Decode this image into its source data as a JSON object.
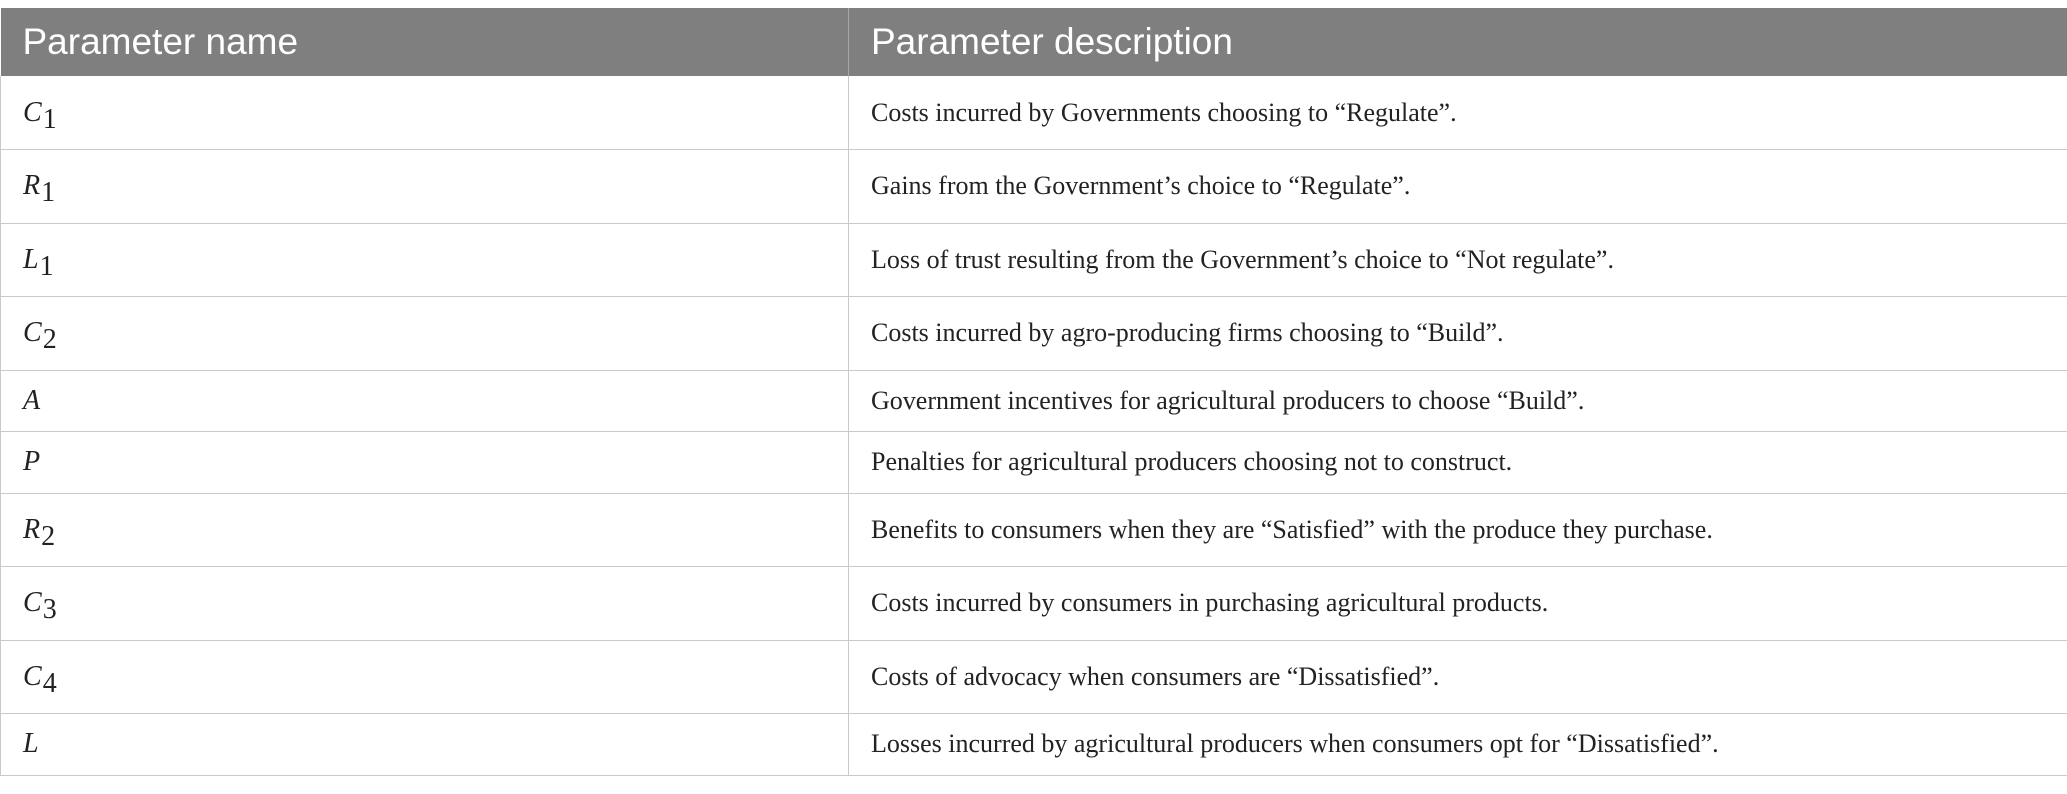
{
  "table": {
    "headers": [
      "Parameter name",
      "Parameter description"
    ],
    "rows": [
      {
        "symbol": "C",
        "subscript": "1",
        "description": "Costs incurred by Governments choosing to “Regulate”."
      },
      {
        "symbol": "R",
        "subscript": "1",
        "description": "Gains from the Government’s choice to “Regulate”."
      },
      {
        "symbol": "L",
        "subscript": "1",
        "description": "Loss of trust resulting from the Government’s choice to “Not regulate”."
      },
      {
        "symbol": "C",
        "subscript": "2",
        "description": "Costs incurred by agro-producing firms choosing to “Build”."
      },
      {
        "symbol": "A",
        "subscript": "",
        "description": "Government incentives for agricultural producers to choose “Build”."
      },
      {
        "symbol": "P",
        "subscript": "",
        "description": "Penalties for agricultural producers choosing not to construct."
      },
      {
        "symbol": "R",
        "subscript": "2",
        "description": "Benefits to consumers when they are “Satisfied” with the produce they purchase."
      },
      {
        "symbol": "C",
        "subscript": "3",
        "description": "Costs incurred by consumers in purchasing agricultural products."
      },
      {
        "symbol": "C",
        "subscript": "4",
        "description": "Costs of advocacy when consumers are “Dissatisfied”."
      },
      {
        "symbol": "L",
        "subscript": "",
        "description": "Losses incurred by agricultural producers when consumers opt for “Dissatisfied”."
      }
    ]
  },
  "colors": {
    "header_bg": "#7f7f7f",
    "header_text": "#ffffff",
    "grid": "#c9c9c9"
  }
}
